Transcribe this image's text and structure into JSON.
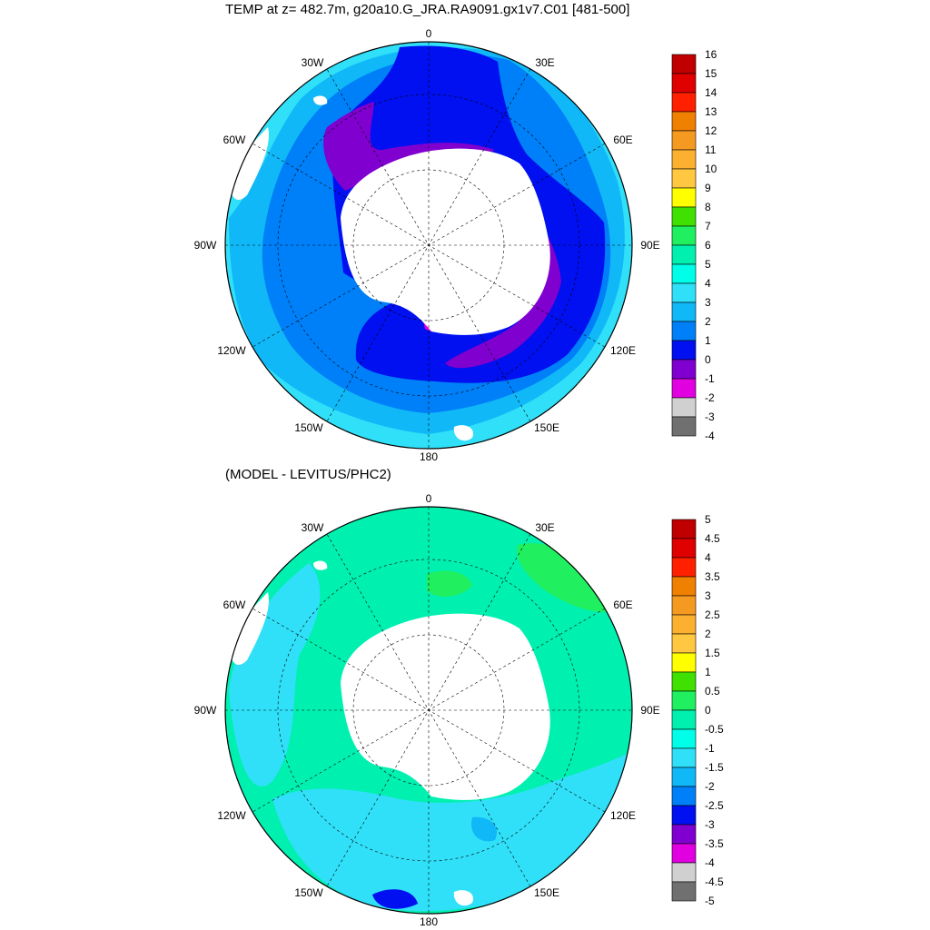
{
  "top_panel": {
    "title": "TEMP at z= 482.7m, g20a10.G_JRA.RA9091.gx1v7.C01 [481-500]",
    "longitude_labels": [
      "0",
      "30E",
      "60E",
      "90E",
      "120E",
      "150E",
      "180",
      "150W",
      "120W",
      "90W",
      "60W",
      "30W"
    ],
    "colorbar_labels": [
      "16",
      "15",
      "14",
      "13",
      "12",
      "11",
      "10",
      "9",
      "8",
      "7",
      "6",
      "5",
      "4",
      "3",
      "2",
      "1",
      "0",
      "-1",
      "-2",
      "-3",
      "-4"
    ],
    "colorbar_colors": [
      "#c00000",
      "#e00000",
      "#ff2000",
      "#f08000",
      "#f59a20",
      "#fbb030",
      "#ffc840",
      "#ffff00",
      "#40e000",
      "#20f060",
      "#00f0b0",
      "#00ffe8",
      "#30e0f8",
      "#10b8f8",
      "#0080f8",
      "#0010f0",
      "#8000d0",
      "#e000e0",
      "#d0d0d0",
      "#707070"
    ]
  },
  "bottom_panel": {
    "title": "(MODEL - LEVITUS/PHC2)",
    "longitude_labels": [
      "0",
      "30E",
      "60E",
      "90E",
      "120E",
      "150E",
      "180",
      "150W",
      "120W",
      "90W",
      "60W",
      "30W"
    ],
    "colorbar_labels": [
      "5",
      "4.5",
      "4",
      "3.5",
      "3",
      "2.5",
      "2",
      "1.5",
      "1",
      "0.5",
      "0",
      "-0.5",
      "-1",
      "-1.5",
      "-2",
      "-2.5",
      "-3",
      "-3.5",
      "-4",
      "-4.5",
      "-5"
    ],
    "colorbar_colors": [
      "#c00000",
      "#e00000",
      "#ff2000",
      "#f08000",
      "#f59a20",
      "#fbb030",
      "#ffc840",
      "#ffff00",
      "#40e000",
      "#20f060",
      "#00f0b0",
      "#00ffe8",
      "#30e0f8",
      "#10b8f8",
      "#0080f8",
      "#0010f0",
      "#8000d0",
      "#e000e0",
      "#d0d0d0",
      "#707070"
    ]
  }
}
